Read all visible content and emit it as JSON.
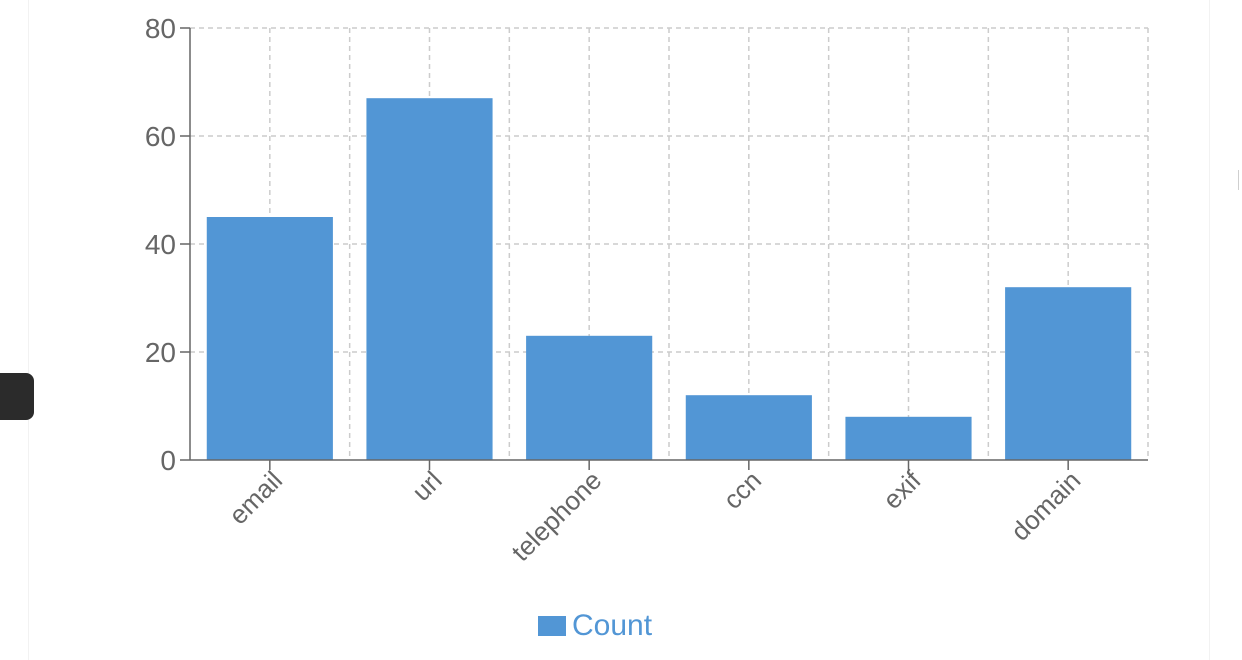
{
  "colors": {
    "bar": "#5296d5",
    "grid": "#cccccc",
    "axis": "#666666",
    "legend_text": "#5296d5"
  },
  "legend": {
    "label": "Count"
  },
  "chart_data": {
    "type": "bar",
    "categories": [
      "email",
      "url",
      "telephone",
      "ccn",
      "exif",
      "domain"
    ],
    "series": [
      {
        "name": "Count",
        "values": [
          45,
          67,
          23,
          12,
          8,
          32
        ]
      }
    ],
    "ylim": [
      0,
      80
    ],
    "yticks": [
      0,
      20,
      40,
      60,
      80
    ],
    "grid": true,
    "legend_position": "bottom"
  }
}
